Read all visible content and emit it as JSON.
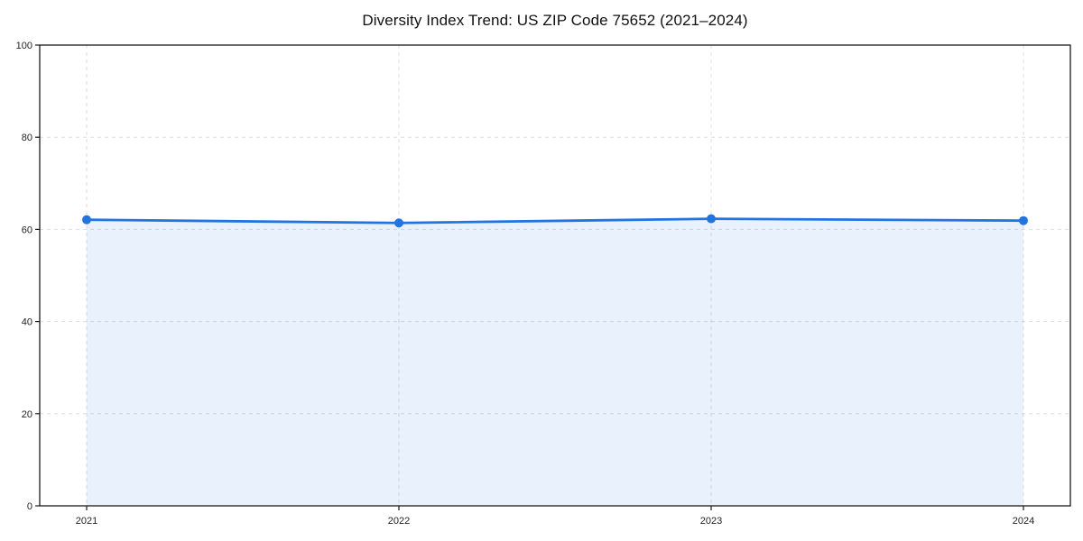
{
  "chart_data": {
    "type": "area",
    "title": "Diversity Index Trend: US ZIP Code 75652 (2021–2024)",
    "x": [
      2021,
      2022,
      2023,
      2024
    ],
    "xtick_labels": [
      "2021",
      "2022",
      "2023",
      "2024"
    ],
    "values": [
      62.1,
      61.4,
      62.3,
      61.9
    ],
    "xlabel": "",
    "ylabel": "",
    "ylim": [
      0,
      100
    ],
    "yticks": [
      0,
      20,
      40,
      60,
      80,
      100
    ],
    "grid": true,
    "grid_style": "dashed",
    "legend": "none",
    "colors": {
      "line": "#2274e1",
      "marker": "#2274e1",
      "fill": "#2274e1",
      "fill_opacity": 0.1,
      "grid": "#dedede",
      "spine": "#1a1a1a",
      "tick_text": "#222222",
      "title_text": "#111111",
      "background": "#ffffff"
    }
  }
}
